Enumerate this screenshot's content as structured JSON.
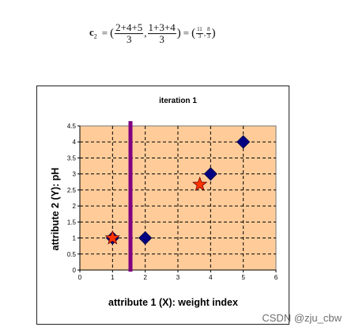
{
  "formula": {
    "symbol": "c",
    "subscript": "2",
    "equals": "=",
    "term1_num": "2+4+5",
    "term1_den": "3",
    "comma": ",",
    "term2_num": "1+3+4",
    "term2_den": "3",
    "result_num1": "11",
    "result_den1": "3",
    "result_num2": "8",
    "result_den2": "3"
  },
  "chart_data": {
    "type": "scatter",
    "title": "iteration 1",
    "xlabel": "attribute 1 (X): weight index",
    "ylabel": "attribute 2 (Y): pH",
    "xlim": [
      0,
      6
    ],
    "ylim": [
      0,
      4.5
    ],
    "x_ticks": [
      "0",
      "1",
      "2",
      "3",
      "4",
      "5",
      "6"
    ],
    "y_ticks": [
      "0",
      "0.5",
      "1",
      "1.5",
      "2",
      "2.5",
      "3",
      "3.5",
      "4",
      "4.5"
    ],
    "grid": true,
    "plot_background": "#FFCC99",
    "series": [
      {
        "marker": "diamond",
        "color": "#000080",
        "points": [
          [
            1,
            1
          ],
          [
            2,
            1
          ],
          [
            4,
            3
          ],
          [
            5,
            4
          ]
        ]
      },
      {
        "marker": "star",
        "color": "#FF3300",
        "points": [
          [
            1,
            1
          ],
          [
            3.67,
            2.67
          ]
        ]
      }
    ],
    "vertical_line": {
      "x": 1.5,
      "color": "#800080"
    }
  },
  "watermark": "CSDN @zju_cbw"
}
